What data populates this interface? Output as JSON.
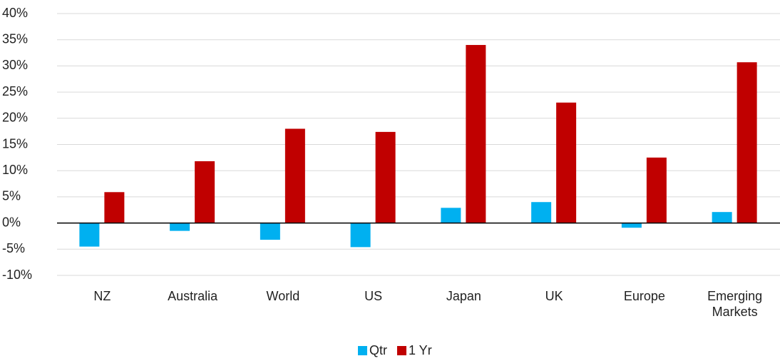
{
  "chart_data": {
    "type": "bar",
    "categories": [
      "NZ",
      "Australia",
      "World",
      "US",
      "Japan",
      "UK",
      "Europe",
      "Emerging Markets"
    ],
    "series": [
      {
        "name": "Qtr",
        "color": "#00b0f0",
        "values": [
          -4.5,
          -1.5,
          -3.2,
          -4.6,
          2.9,
          4.0,
          -0.9,
          2.1
        ]
      },
      {
        "name": "1 Yr",
        "color": "#c00000",
        "values": [
          5.9,
          11.8,
          18.0,
          17.4,
          34.0,
          23.0,
          12.5,
          30.7
        ]
      }
    ],
    "ylim": [
      -10,
      40
    ],
    "yticks": [
      {
        "value": -10,
        "label": "-10%"
      },
      {
        "value": -5,
        "label": "-5%"
      },
      {
        "value": 0,
        "label": "0%"
      },
      {
        "value": 5,
        "label": "5%"
      },
      {
        "value": 10,
        "label": "10%"
      },
      {
        "value": 15,
        "label": "15%"
      },
      {
        "value": 20,
        "label": "20%"
      },
      {
        "value": 25,
        "label": "25%"
      },
      {
        "value": 30,
        "label": "30%"
      },
      {
        "value": 35,
        "label": "35%"
      },
      {
        "value": 40,
        "label": "40%"
      }
    ],
    "grid": true,
    "legend": "bottom"
  }
}
